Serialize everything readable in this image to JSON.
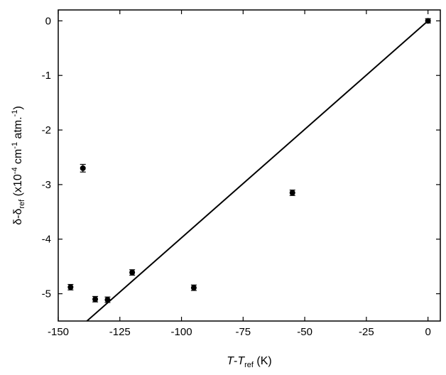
{
  "chart_data": {
    "type": "scatter",
    "title": "",
    "xlabel": {
      "italic": "T",
      "dash": "-",
      "italic2": "T",
      "sub": "ref",
      "unit": " (K)"
    },
    "ylabel": {
      "delta": "δ-δ",
      "sub": "ref",
      "open": " (x10",
      "sup1": "-4",
      "cm": " cm",
      "sup2": "-1",
      "atm": " atm.",
      "sup3": "-1",
      "close": ")"
    },
    "xlim": [
      -150,
      5
    ],
    "ylim": [
      -5.5,
      0.2
    ],
    "x_ticks": [
      -150,
      -125,
      -100,
      -75,
      -50,
      -25,
      0
    ],
    "y_ticks": [
      0,
      -1,
      -2,
      -3,
      -4,
      -5
    ],
    "grid": false,
    "points": [
      {
        "x": 0,
        "y": 0.0,
        "err": 0.04
      },
      {
        "x": -55,
        "y": -3.15,
        "err": 0.05
      },
      {
        "x": -95,
        "y": -4.89,
        "err": 0.05
      },
      {
        "x": -120,
        "y": -4.61,
        "err": 0.05
      },
      {
        "x": -130,
        "y": -5.11,
        "err": 0.05
      },
      {
        "x": -135,
        "y": -5.1,
        "err": 0.05
      },
      {
        "x": -140,
        "y": -2.7,
        "err": 0.07
      },
      {
        "x": -145,
        "y": -4.88,
        "err": 0.05
      }
    ],
    "fit_line": {
      "slope": 0.03975,
      "intercept": 0.0
    }
  }
}
